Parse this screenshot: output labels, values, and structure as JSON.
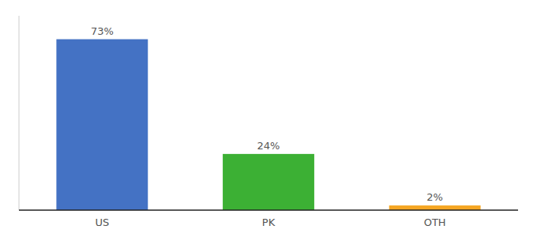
{
  "chart_data": {
    "type": "bar",
    "categories": [
      "US",
      "PK",
      "OTH"
    ],
    "values": [
      73,
      24,
      2
    ],
    "value_labels": [
      "73%",
      "24%",
      "2%"
    ],
    "colors": [
      "#4472c4",
      "#3cb034",
      "#f5a623"
    ],
    "ylim": [
      0,
      83
    ],
    "data_labels": true,
    "tick_labels": "x",
    "grid": false
  }
}
